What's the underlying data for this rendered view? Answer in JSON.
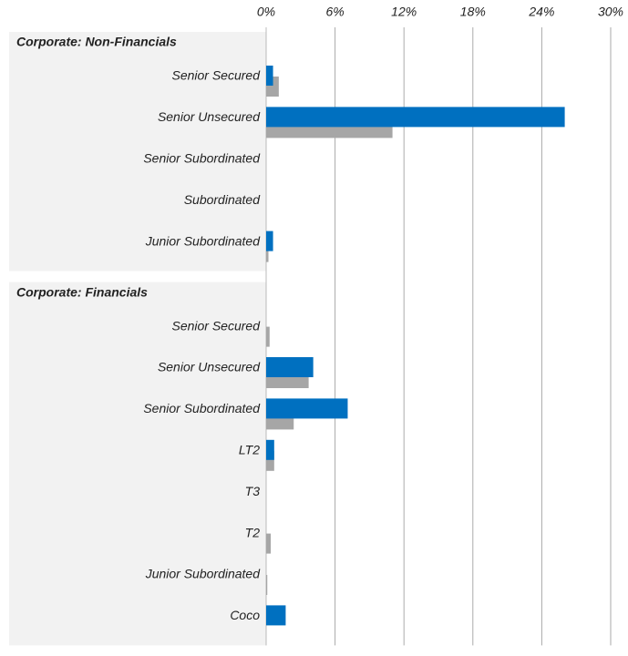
{
  "chart_data": {
    "type": "bar",
    "orientation": "horizontal",
    "xlim": [
      0,
      30
    ],
    "xticks": [
      {
        "value": 0,
        "label": "0%"
      },
      {
        "value": 6,
        "label": "6%"
      },
      {
        "value": 12,
        "label": "12%"
      },
      {
        "value": 18,
        "label": "18%"
      },
      {
        "value": 24,
        "label": "24%"
      },
      {
        "value": 30,
        "label": "30%"
      }
    ],
    "grid": true,
    "groups": [
      {
        "label": "Corporate: Non-Financials",
        "categories": [
          "Senior Secured",
          "Senior Unsecured",
          "Senior Subordinated",
          "Subordinated",
          "Junior Subordinated"
        ],
        "series": [
          {
            "color": "#a6a6a6",
            "values": [
              1.1,
              11.0,
              0,
              0,
              0.2
            ]
          },
          {
            "color": "#0070c0",
            "values": [
              0.6,
              26.0,
              0,
              0,
              0.6
            ]
          }
        ]
      },
      {
        "label": "Corporate: Financials",
        "categories": [
          "Senior Secured",
          "Senior Unsecured",
          "Senior Subordinated",
          "LT2",
          "T3",
          "T2",
          "Junior Subordinated",
          "Coco"
        ],
        "series": [
          {
            "color": "#a6a6a6",
            "values": [
              0.3,
              3.7,
              2.4,
              0.7,
              0,
              0.4,
              0.1,
              0
            ]
          },
          {
            "color": "#0070c0",
            "values": [
              0,
              4.1,
              7.1,
              0.7,
              0,
              0,
              0,
              1.7
            ]
          }
        ]
      }
    ]
  }
}
